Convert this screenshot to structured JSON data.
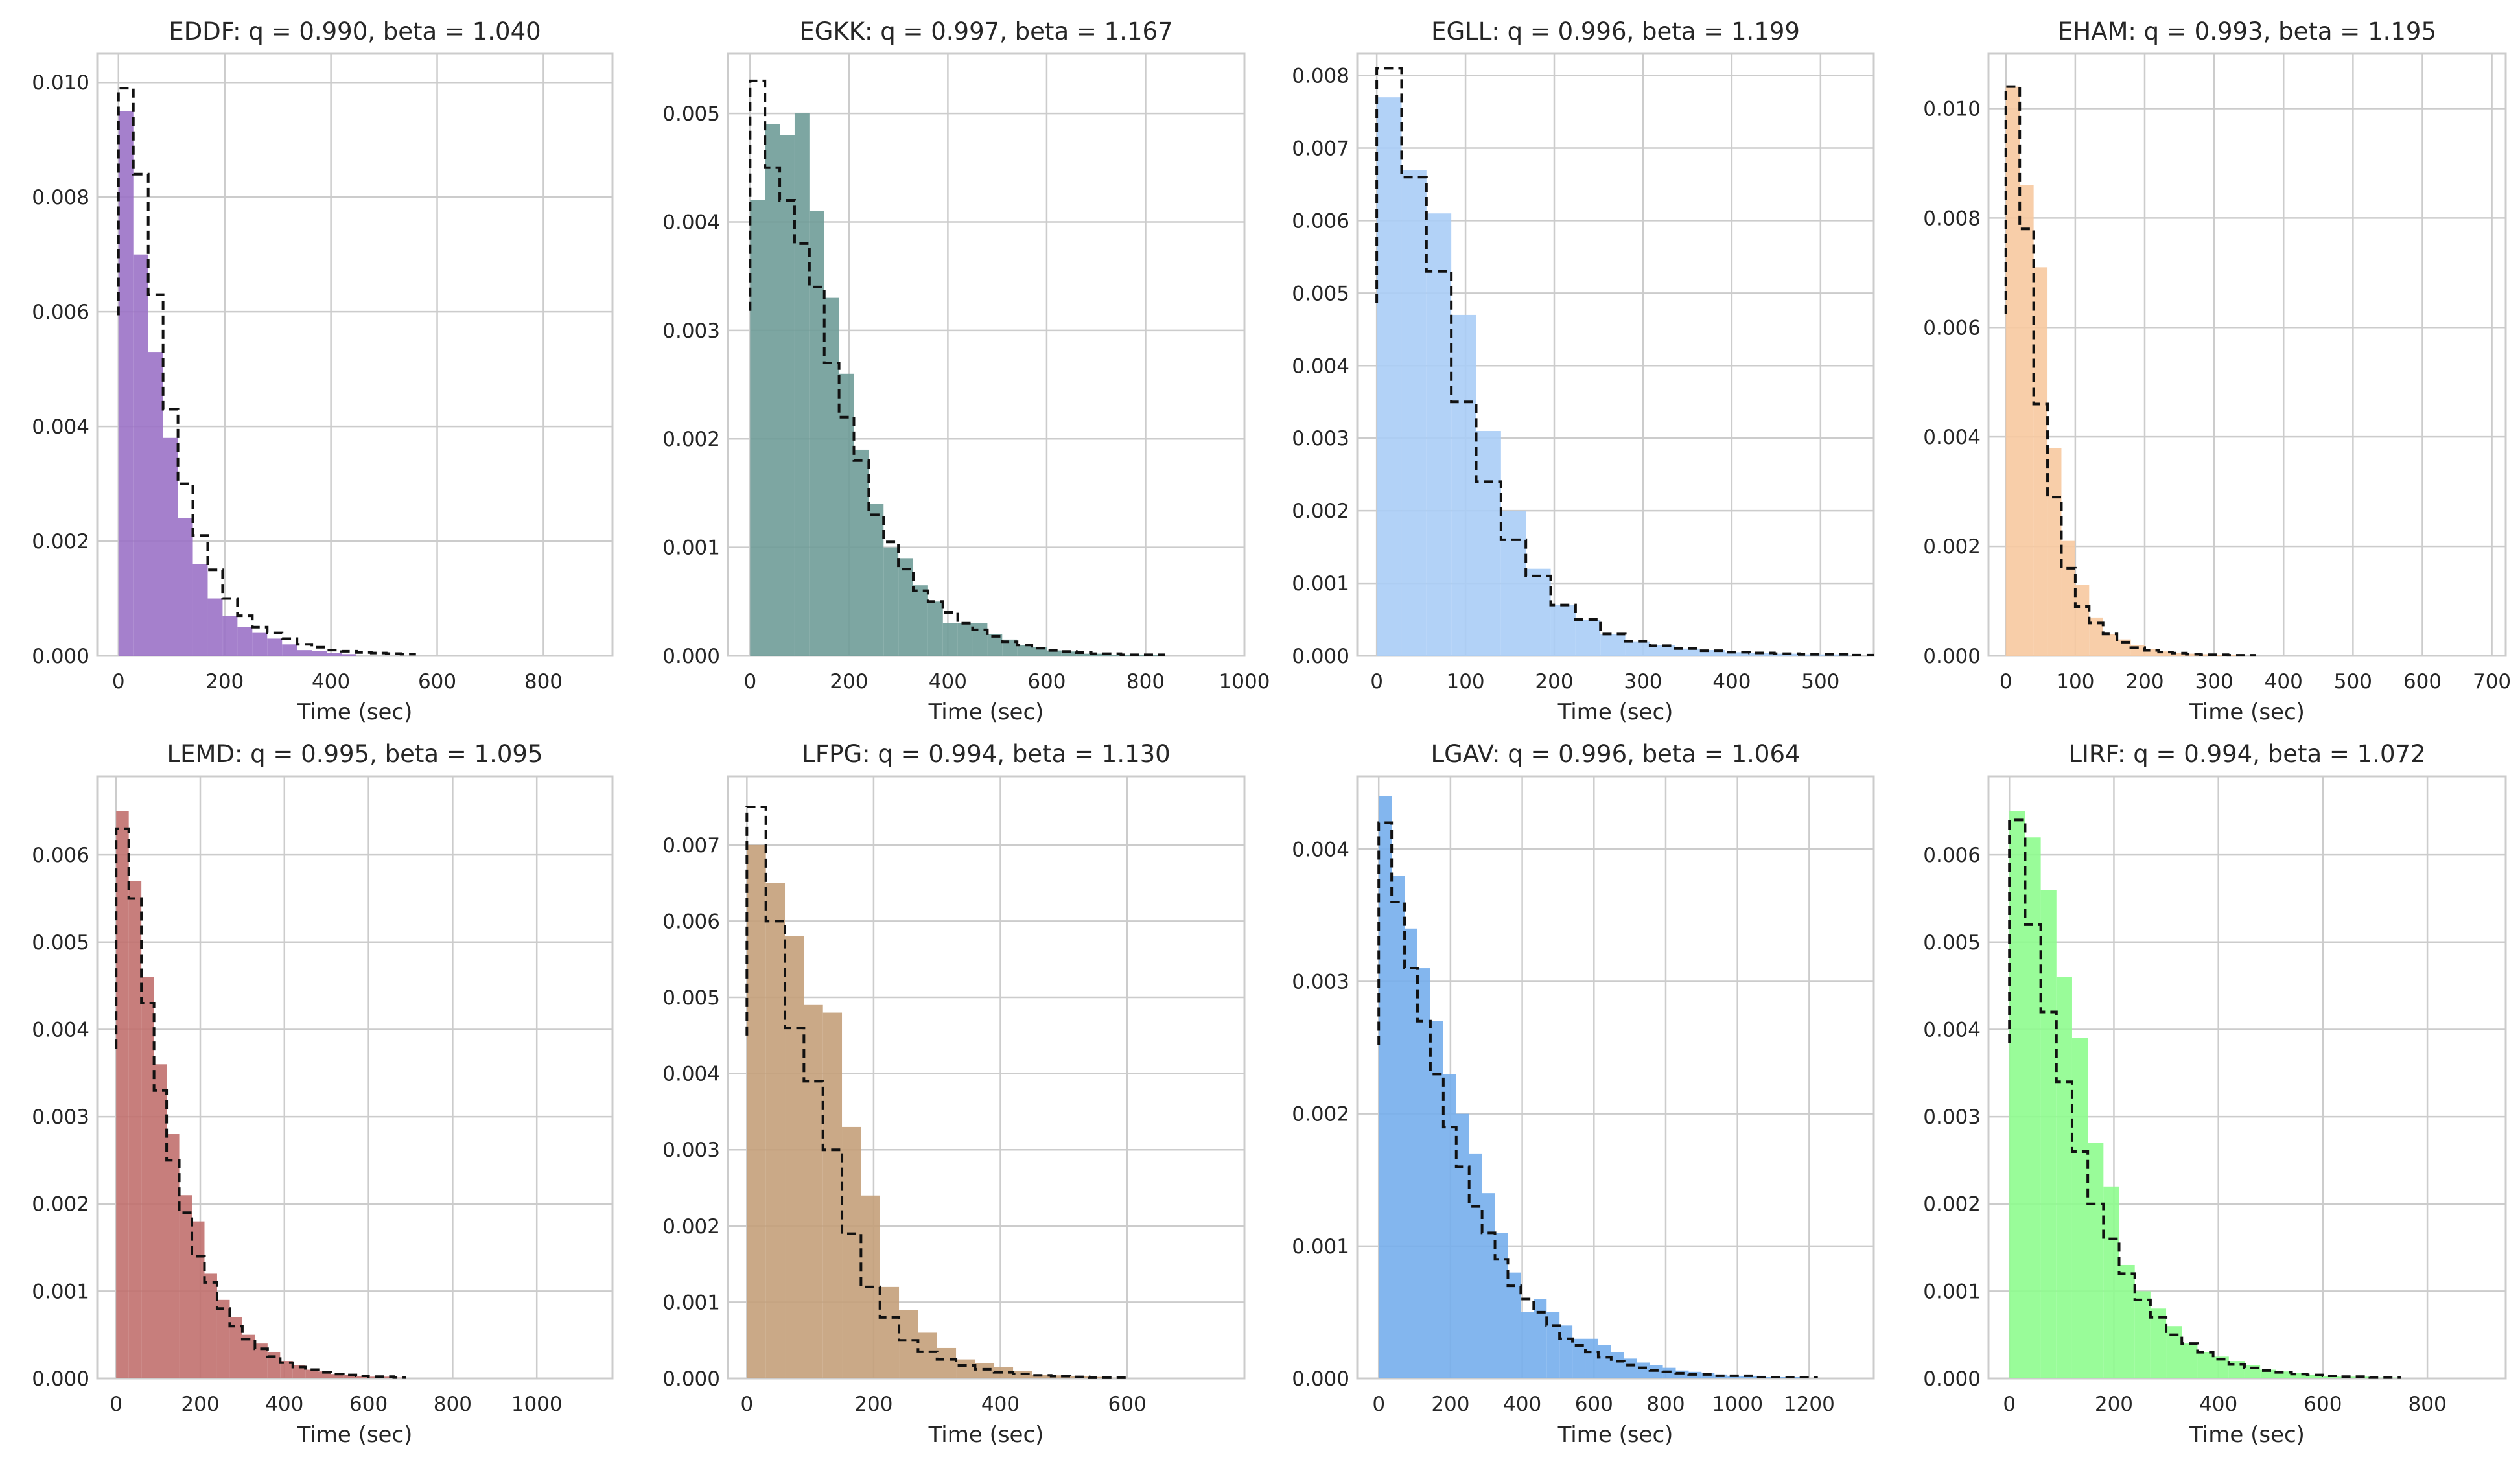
{
  "figure": {
    "subplots_grid": "2x4",
    "xlabel": "Time (sec)",
    "style": "seaborn-whitegrid",
    "fit_line_style": "black dashed step"
  },
  "chart_data": [
    {
      "type": "bar",
      "title": "EDDF: q = 0.990, beta = 1.040",
      "xlabel": "Time (sec)",
      "color": "#9b72c6",
      "xlim": [
        -40,
        930
      ],
      "ylim": [
        0,
        0.0105
      ],
      "xticks": [
        0,
        200,
        400,
        600,
        800
      ],
      "yticks": [
        0.0,
        0.002,
        0.004,
        0.006,
        0.008,
        0.01
      ],
      "bin_width": 28,
      "histogram": [
        0.0095,
        0.007,
        0.0053,
        0.0038,
        0.0024,
        0.0016,
        0.001,
        0.0007,
        0.0005,
        0.0004,
        0.0003,
        0.0002,
        0.0001,
        8e-05,
        5e-05,
        3e-05
      ],
      "fit": [
        0.0099,
        0.0084,
        0.0063,
        0.0043,
        0.003,
        0.0021,
        0.0015,
        0.001,
        0.0007,
        0.0005,
        0.0004,
        0.0003,
        0.0002,
        0.00015,
        0.0001,
        8e-05,
        6e-05,
        5e-05,
        4e-05,
        3e-05
      ]
    },
    {
      "type": "bar",
      "title": "EGKK: q = 0.997, beta = 1.167",
      "xlabel": "Time (sec)",
      "color": "#6f9c98",
      "xlim": [
        -45,
        1000
      ],
      "ylim": [
        0,
        0.00555
      ],
      "xticks": [
        0,
        200,
        400,
        600,
        800,
        1000
      ],
      "yticks": [
        0.0,
        0.001,
        0.002,
        0.003,
        0.004,
        0.005
      ],
      "bin_width": 30,
      "histogram": [
        0.0042,
        0.0049,
        0.0048,
        0.005,
        0.0041,
        0.0033,
        0.0026,
        0.0019,
        0.0014,
        0.001,
        0.0009,
        0.00065,
        0.0005,
        0.0003,
        0.0003,
        0.0003,
        0.0002,
        0.00015,
        0.0001,
        8e-05,
        5e-05,
        4e-05,
        2e-05,
        2e-05,
        1e-05,
        1e-05,
        1e-05,
        1e-05
      ],
      "fit": [
        0.0053,
        0.0045,
        0.0042,
        0.0038,
        0.0034,
        0.0027,
        0.0022,
        0.0018,
        0.0013,
        0.00105,
        0.0008,
        0.0006,
        0.0005,
        0.0004,
        0.0003,
        0.00024,
        0.00018,
        0.00013,
        0.0001,
        7e-05,
        5e-05,
        4e-05,
        3e-05,
        2e-05,
        2e-05,
        1e-05,
        1e-05,
        1e-05
      ]
    },
    {
      "type": "bar",
      "title": "EGLL: q = 0.996, beta = 1.199",
      "xlabel": "Time (sec)",
      "color": "#aacdf6",
      "xlim": [
        -22,
        560
      ],
      "ylim": [
        0,
        0.0083
      ],
      "xticks": [
        0,
        100,
        200,
        300,
        400,
        500
      ],
      "yticks": [
        0.0,
        0.001,
        0.002,
        0.003,
        0.004,
        0.005,
        0.006,
        0.007,
        0.008
      ],
      "bin_width": 28,
      "histogram": [
        0.0077,
        0.0067,
        0.0061,
        0.0047,
        0.0031,
        0.002,
        0.0012,
        0.0007,
        0.0005,
        0.0003,
        0.0002,
        0.00015,
        0.0001,
        8e-05,
        5e-05,
        4e-05,
        3e-05,
        2e-05,
        2e-05
      ],
      "fit": [
        0.0081,
        0.0066,
        0.0053,
        0.0035,
        0.0024,
        0.0016,
        0.0011,
        0.0007,
        0.0005,
        0.0003,
        0.0002,
        0.00014,
        0.0001,
        7e-05,
        5e-05,
        4e-05,
        3e-05,
        2e-05,
        2e-05,
        1e-05
      ]
    },
    {
      "type": "bar",
      "title": "EHAM: q = 0.993, beta = 1.195",
      "xlabel": "Time (sec)",
      "color": "#f7c9a0",
      "xlim": [
        -25,
        720
      ],
      "ylim": [
        0,
        0.011
      ],
      "xticks": [
        0,
        100,
        200,
        300,
        400,
        500,
        600,
        700
      ],
      "yticks": [
        0.0,
        0.002,
        0.004,
        0.006,
        0.008,
        0.01
      ],
      "bin_width": 20,
      "histogram": [
        0.0104,
        0.0086,
        0.0071,
        0.0038,
        0.0021,
        0.0013,
        0.0007,
        0.0004,
        0.0003,
        0.0002,
        0.00012,
        8e-05,
        5e-05,
        4e-05,
        3e-05,
        2e-05,
        2e-05
      ],
      "fit": [
        0.0104,
        0.0078,
        0.0046,
        0.0029,
        0.0016,
        0.0009,
        0.0006,
        0.0004,
        0.00025,
        0.00015,
        0.0001,
        7e-05,
        5e-05,
        3e-05,
        2e-05,
        2e-05,
        1e-05,
        1e-05
      ]
    },
    {
      "type": "bar",
      "title": "LEMD: q = 0.995, beta = 1.095",
      "xlabel": "Time (sec)",
      "color": "#c1706e",
      "xlim": [
        -45,
        1180
      ],
      "ylim": [
        0,
        0.0069
      ],
      "xticks": [
        0,
        200,
        400,
        600,
        800,
        1000
      ],
      "yticks": [
        0.0,
        0.001,
        0.002,
        0.003,
        0.004,
        0.005,
        0.006
      ],
      "bin_width": 30,
      "histogram": [
        0.0065,
        0.0057,
        0.0046,
        0.0036,
        0.0028,
        0.0021,
        0.0018,
        0.0012,
        0.0009,
        0.0007,
        0.0005,
        0.0004,
        0.0003,
        0.0002,
        0.00015,
        0.0001,
        8e-05,
        5e-05,
        4e-05,
        3e-05,
        2e-05,
        2e-05,
        1e-05
      ],
      "fit": [
        0.0063,
        0.0055,
        0.0043,
        0.0033,
        0.0025,
        0.0019,
        0.0014,
        0.0011,
        0.0008,
        0.0006,
        0.00045,
        0.00034,
        0.00025,
        0.00018,
        0.00013,
        0.0001,
        7e-05,
        5e-05,
        4e-05,
        3e-05,
        2e-05,
        2e-05,
        1e-05
      ]
    },
    {
      "type": "bar",
      "title": "LFPG: q = 0.994, beta = 1.130",
      "xlabel": "Time (sec)",
      "color": "#c4a07a",
      "xlim": [
        -30,
        785
      ],
      "ylim": [
        0,
        0.0079
      ],
      "xticks": [
        0,
        200,
        400,
        600
      ],
      "yticks": [
        0.0,
        0.001,
        0.002,
        0.003,
        0.004,
        0.005,
        0.006,
        0.007
      ],
      "bin_width": 30,
      "histogram": [
        0.007,
        0.0065,
        0.0058,
        0.0049,
        0.0048,
        0.0033,
        0.0024,
        0.0012,
        0.0009,
        0.0006,
        0.0004,
        0.00025,
        0.0002,
        0.00015,
        0.0001,
        5e-05,
        4e-05,
        3e-05,
        2e-05,
        1e-05
      ],
      "fit": [
        0.0075,
        0.006,
        0.0046,
        0.0039,
        0.003,
        0.0019,
        0.0012,
        0.0008,
        0.0005,
        0.00035,
        0.00025,
        0.00017,
        0.00012,
        8e-05,
        6e-05,
        4e-05,
        3e-05,
        2e-05,
        1e-05,
        1e-05
      ]
    },
    {
      "type": "bar",
      "title": "LGAV: q = 0.996, beta = 1.064",
      "xlabel": "Time (sec)",
      "color": "#76aeec",
      "xlim": [
        -60,
        1380
      ],
      "ylim": [
        0,
        0.00455
      ],
      "xticks": [
        0,
        200,
        400,
        600,
        800,
        1000,
        1200
      ],
      "yticks": [
        0.0,
        0.001,
        0.002,
        0.003,
        0.004
      ],
      "bin_width": 36,
      "histogram": [
        0.0044,
        0.0038,
        0.0034,
        0.0031,
        0.0027,
        0.0023,
        0.002,
        0.0017,
        0.0014,
        0.0011,
        0.0008,
        0.0005,
        0.0006,
        0.0005,
        0.0004,
        0.0003,
        0.0003,
        0.00025,
        0.0002,
        0.00015,
        0.00012,
        0.0001,
        8e-05,
        6e-05,
        5e-05,
        4e-05,
        3e-05,
        2e-05,
        2e-05,
        2e-05,
        1e-05,
        1e-05,
        1e-05
      ],
      "fit": [
        0.0042,
        0.0036,
        0.0031,
        0.0027,
        0.0023,
        0.0019,
        0.0016,
        0.0013,
        0.0011,
        0.0009,
        0.0007,
        0.0006,
        0.0005,
        0.0004,
        0.0003,
        0.00025,
        0.0002,
        0.00016,
        0.00013,
        0.0001,
        8e-05,
        6e-05,
        5e-05,
        4e-05,
        3e-05,
        3e-05,
        2e-05,
        2e-05,
        2e-05,
        1e-05,
        1e-05,
        1e-05,
        1e-05,
        1e-05
      ]
    },
    {
      "type": "bar",
      "title": "LIRF: q = 0.994, beta = 1.072",
      "xlabel": "Time (sec)",
      "color": "#8efc8e",
      "xlim": [
        -40,
        950
      ],
      "ylim": [
        0,
        0.0069
      ],
      "xticks": [
        0,
        200,
        400,
        600,
        800
      ],
      "yticks": [
        0.0,
        0.001,
        0.002,
        0.003,
        0.004,
        0.005,
        0.006
      ],
      "bin_width": 30,
      "histogram": [
        0.0065,
        0.0062,
        0.0056,
        0.0046,
        0.0039,
        0.0027,
        0.0022,
        0.0013,
        0.001,
        0.0008,
        0.0006,
        0.0004,
        0.0003,
        0.00025,
        0.0002,
        0.00015,
        0.0001,
        8e-05,
        6e-05,
        4e-05,
        3e-05,
        2e-05,
        2e-05,
        1e-05,
        1e-05
      ],
      "fit": [
        0.0064,
        0.0052,
        0.0042,
        0.0034,
        0.0026,
        0.002,
        0.0016,
        0.0012,
        0.0009,
        0.0007,
        0.0005,
        0.0004,
        0.0003,
        0.00022,
        0.00016,
        0.00012,
        9e-05,
        7e-05,
        5e-05,
        4e-05,
        3e-05,
        2e-05,
        2e-05,
        1e-05,
        1e-05
      ]
    }
  ]
}
